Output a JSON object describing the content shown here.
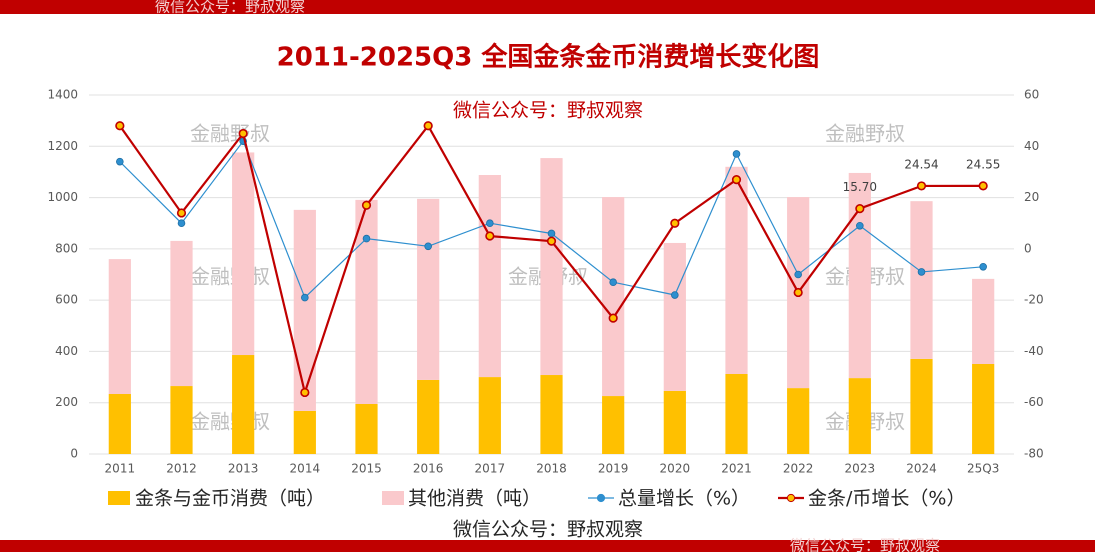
{
  "watermarks": {
    "account": "微信公众号：野叔观察",
    "tile": "金融野叔"
  },
  "chart_data": {
    "type": "bar-line",
    "title": "2011-2025Q3 全国金条金币消费增长变化图",
    "categories": [
      "2011",
      "2012",
      "2013",
      "2014",
      "2015",
      "2016",
      "2017",
      "2018",
      "2019",
      "2020",
      "2021",
      "2022",
      "2023",
      "2024",
      "25Q3"
    ],
    "series": [
      {
        "name": "金条与金币消费（吨）",
        "color": "#ffc000",
        "kind": "bar",
        "values": [
          234,
          265,
          386,
          168,
          195,
          289,
          300,
          308,
          226,
          246,
          312,
          257,
          296,
          371,
          351
        ]
      },
      {
        "name": "其他消费（吨）",
        "color": "#fac9cc",
        "kind": "bar",
        "values": [
          526,
          566,
          790,
          784,
          796,
          706,
          788,
          846,
          776,
          577,
          808,
          745,
          800,
          615,
          332
        ]
      },
      {
        "name": "总量增长（%）",
        "color": "#2e8fcf",
        "kind": "line",
        "axis": "y2",
        "values": [
          34,
          10,
          42,
          -19,
          4,
          1,
          10,
          6,
          -13,
          -18,
          37,
          -10,
          9,
          -9,
          -7
        ]
      },
      {
        "name": "金条/币增长（%）",
        "color": "#c00000",
        "marker": "#ffc000",
        "kind": "line",
        "axis": "y2",
        "values": [
          48,
          14,
          45,
          -56,
          17,
          48,
          5,
          3,
          -27,
          10,
          27,
          -17,
          15.7,
          24.54,
          24.55
        ],
        "value_labels": [
          null,
          null,
          null,
          null,
          null,
          null,
          null,
          null,
          null,
          null,
          null,
          null,
          "15.70",
          "24.54",
          "24.55"
        ]
      }
    ],
    "ylim": [
      0,
      1400
    ],
    "yticks": [
      0,
      200,
      400,
      600,
      800,
      1000,
      1200,
      1400
    ],
    "y2lim": [
      -80,
      60
    ],
    "y2ticks": [
      -80,
      -60,
      -40,
      -20,
      0,
      20,
      40,
      60
    ],
    "grid": true
  }
}
